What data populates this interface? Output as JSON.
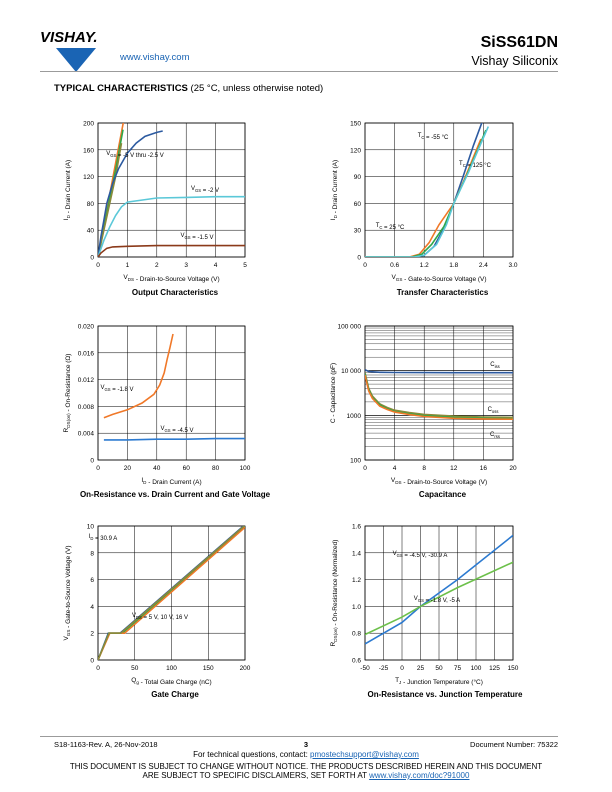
{
  "header": {
    "brand": "VISHAY.",
    "url": "www.vishay.com",
    "part_number": "SiSS61DN",
    "company": "Vishay Siliconix"
  },
  "section": {
    "title": "TYPICAL CHARACTERISTICS",
    "subtitle": "(25 °C, unless otherwise noted)"
  },
  "chart_data": [
    {
      "id": "output",
      "type": "line",
      "title": "Output Characteristics",
      "xlabel": "V_DS - Drain-to-Source Voltage (V)",
      "ylabel": "I_D - Drain Current (A)",
      "xlim": [
        0,
        5
      ],
      "ylim": [
        0,
        200
      ],
      "xticks": [
        "0",
        "1",
        "2",
        "3",
        "4",
        "5"
      ],
      "yticks": [
        "0",
        "40",
        "80",
        "120",
        "160",
        "200"
      ],
      "grid": true,
      "annotations": [
        "V_GS = -5 V thru -2.5 V",
        "V_GS = -2 V",
        "V_GS = -1.5 V"
      ],
      "series": [
        {
          "color": "#f07828",
          "x": [
            0,
            0.3,
            0.6,
            0.9
          ],
          "y": [
            0,
            70,
            140,
            210
          ]
        },
        {
          "color": "#2fa84a",
          "x": [
            0,
            0.3,
            0.6,
            0.85
          ],
          "y": [
            0,
            65,
            130,
            190
          ]
        },
        {
          "color": "#8a8a3a",
          "x": [
            0,
            0.3,
            0.6,
            0.8
          ],
          "y": [
            0,
            60,
            120,
            170
          ]
        },
        {
          "color": "#2c5aa0",
          "x": [
            0,
            0.1,
            0.2,
            0.3,
            0.5,
            0.7,
            1.0,
            1.3,
            1.6,
            2.0,
            2.2
          ],
          "y": [
            0,
            30,
            55,
            80,
            110,
            132,
            155,
            170,
            180,
            186,
            188
          ]
        },
        {
          "color": "#5bc8d8",
          "x": [
            0,
            0.2,
            0.4,
            0.6,
            0.8,
            1.0,
            2,
            3,
            4,
            5
          ],
          "y": [
            0,
            25,
            45,
            62,
            75,
            82,
            88,
            89,
            90,
            90
          ]
        },
        {
          "color": "#8b3a1a",
          "x": [
            0,
            0.1,
            0.3,
            0.5,
            1,
            2,
            3,
            4,
            5
          ],
          "y": [
            0,
            6,
            13,
            15,
            16,
            17,
            17,
            17,
            17
          ]
        }
      ]
    },
    {
      "id": "transfer",
      "type": "line",
      "title": "Transfer Characteristics",
      "xlabel": "V_GS - Gate-to-Source Voltage (V)",
      "ylabel": "I_D - Drain Current (A)",
      "xlim": [
        0,
        3.0
      ],
      "ylim": [
        0,
        150
      ],
      "xticks": [
        "0",
        "0.6",
        "1.2",
        "1.8",
        "2.4",
        "3.0"
      ],
      "yticks": [
        "0",
        "30",
        "60",
        "90",
        "120",
        "150"
      ],
      "grid": true,
      "annotations": [
        "T_C = -55 °C",
        "T_C = 125 °C",
        "T_C = 25 °C"
      ],
      "series": [
        {
          "color": "#2c5aa0",
          "x": [
            0,
            1.0,
            1.2,
            1.4,
            1.6,
            1.8,
            2.0,
            2.2,
            2.4
          ],
          "y": [
            0,
            0,
            2,
            12,
            32,
            60,
            92,
            125,
            155
          ]
        },
        {
          "color": "#f07828",
          "x": [
            0,
            0.9,
            1.1,
            1.3,
            1.5,
            1.8,
            2.0,
            2.2,
            2.35
          ],
          "y": [
            0,
            0,
            3,
            16,
            36,
            60,
            85,
            112,
            132
          ]
        },
        {
          "color": "#2fa84a",
          "x": [
            0,
            0.95,
            1.15,
            1.35,
            1.6,
            1.8,
            2.05,
            2.3,
            2.45
          ],
          "y": [
            0,
            0,
            3,
            14,
            34,
            60,
            90,
            122,
            142
          ]
        },
        {
          "color": "#5bc8d8",
          "x": [
            0,
            1.0,
            1.2,
            1.45,
            1.65,
            1.8,
            2.1,
            2.35,
            2.5
          ],
          "y": [
            0,
            0,
            2,
            14,
            36,
            60,
            95,
            127,
            146
          ]
        }
      ]
    },
    {
      "id": "onres",
      "type": "line",
      "title": "On-Resistance vs. Drain Current and Gate Voltage",
      "xlabel": "I_D - Drain Current (A)",
      "ylabel": "R_DS(on) - On-Resistance (Ω)",
      "xlim": [
        0,
        100
      ],
      "ylim": [
        0,
        0.02
      ],
      "xticks": [
        "0",
        "20",
        "40",
        "60",
        "80",
        "100"
      ],
      "yticks": [
        "0",
        "0.004",
        "0.008",
        "0.012",
        "0.016",
        "0.020"
      ],
      "grid": true,
      "annotations": [
        "V_GS = -1.8 V",
        "V_GS = -4.5 V"
      ],
      "series": [
        {
          "color": "#f07828",
          "x": [
            4,
            10,
            20,
            30,
            38,
            42,
            45,
            47,
            49,
            51
          ],
          "y": [
            0.0063,
            0.0068,
            0.0075,
            0.0085,
            0.0098,
            0.0112,
            0.013,
            0.015,
            0.0168,
            0.0188
          ]
        },
        {
          "color": "#2c7ad0",
          "x": [
            4,
            20,
            40,
            60,
            80,
            100
          ],
          "y": [
            0.003,
            0.003,
            0.0031,
            0.0031,
            0.0032,
            0.0032
          ]
        }
      ]
    },
    {
      "id": "capacitance",
      "type": "line",
      "title": "Capacitance",
      "xlabel": "V_DS - Drain-to-Source Voltage (V)",
      "ylabel": "C - Capacitance (pF)",
      "xlim": [
        0,
        20
      ],
      "ylim": [
        100,
        100000
      ],
      "yscale": "log",
      "xticks": [
        "0",
        "4",
        "8",
        "12",
        "16",
        "20"
      ],
      "yticks": [
        "100",
        "1000",
        "10 000",
        "100 000"
      ],
      "grid": true,
      "annotations": [
        "C_iss",
        "C_oss",
        "C_rss"
      ],
      "series": [
        {
          "color": "#2c5aa0",
          "x": [
            0,
            0.5,
            2,
            4,
            8,
            12,
            16,
            20
          ],
          "y": [
            10500,
            9600,
            9200,
            9100,
            9050,
            9000,
            9000,
            9000
          ]
        },
        {
          "color": "#8a8a3a",
          "x": [
            0,
            0.5,
            1,
            2,
            3,
            4,
            6,
            8,
            12,
            16,
            20
          ],
          "y": [
            9000,
            4000,
            2700,
            1800,
            1500,
            1300,
            1150,
            1050,
            960,
            920,
            900
          ]
        },
        {
          "color": "#2fa84a",
          "x": [
            0,
            0.5,
            1,
            2,
            3,
            4,
            6,
            8,
            12,
            16,
            20
          ],
          "y": [
            8500,
            3800,
            2500,
            1700,
            1400,
            1220,
            1080,
            980,
            900,
            860,
            840
          ]
        },
        {
          "color": "#f07828",
          "x": [
            0,
            0.5,
            1,
            2,
            3,
            4,
            6,
            8,
            12,
            16,
            20
          ],
          "y": [
            8000,
            3500,
            2400,
            1600,
            1350,
            1180,
            1040,
            940,
            860,
            830,
            820
          ]
        }
      ]
    },
    {
      "id": "gate",
      "type": "line",
      "title": "Gate Charge",
      "xlabel": "Q_g - Total Gate Charge (nC)",
      "ylabel": "V_GS - Gate-to-Source Voltage (V)",
      "xlim": [
        0,
        200
      ],
      "ylim": [
        0,
        10
      ],
      "xticks": [
        "0",
        "50",
        "100",
        "150",
        "200"
      ],
      "yticks": [
        "0",
        "2",
        "4",
        "6",
        "8",
        "10"
      ],
      "grid": true,
      "annotations": [
        "I_D = 30.9 A",
        "V_DS = 5 V, 10 V, 16 V"
      ],
      "series": [
        {
          "color": "#2c5aa0",
          "x": [
            0,
            14,
            30,
            200
          ],
          "y": [
            0,
            2,
            2,
            10.1
          ]
        },
        {
          "color": "#2fa84a",
          "x": [
            0,
            15,
            33,
            200
          ],
          "y": [
            0,
            2,
            2,
            10
          ]
        },
        {
          "color": "#f07828",
          "x": [
            0,
            16,
            36,
            200
          ],
          "y": [
            0,
            2,
            2,
            9.9
          ]
        },
        {
          "color": "#8a8a3a",
          "x": [
            0,
            15,
            31,
            200
          ],
          "y": [
            0,
            2,
            2,
            10.05
          ]
        }
      ]
    },
    {
      "id": "temp",
      "type": "line",
      "title": "On-Resistance vs. Junction Temperature",
      "xlabel": "T_J - Junction Temperature (°C)",
      "ylabel": "R_DS(on) - On-Resistance (Normalized)",
      "xlim": [
        -50,
        150
      ],
      "ylim": [
        0.6,
        1.6
      ],
      "xticks": [
        "-50",
        "-25",
        "0",
        "25",
        "50",
        "75",
        "100",
        "125",
        "150"
      ],
      "yticks": [
        "0.6",
        "0.8",
        "1.0",
        "1.2",
        "1.4",
        "1.6"
      ],
      "grid": true,
      "annotations": [
        "V_GS = -4.5 V, -30.9 A",
        "V_GS = -1.8 V, -5 A"
      ],
      "series": [
        {
          "color": "#2c7ad0",
          "x": [
            -50,
            0,
            25,
            75,
            150
          ],
          "y": [
            0.72,
            0.88,
            1.0,
            1.2,
            1.53
          ]
        },
        {
          "color": "#6cc04a",
          "x": [
            -50,
            0,
            25,
            75,
            150
          ],
          "y": [
            0.79,
            0.92,
            1.0,
            1.14,
            1.33
          ]
        }
      ]
    }
  ],
  "footer": {
    "revision": "S18-1163-Rev. A, 26-Nov-2018",
    "page": "3",
    "document_number": "Document Number: 75322",
    "questions_prefix": "For technical questions, contact: ",
    "questions_email": "pmostechsupport@vishay.com",
    "disclaimer_1": "THIS DOCUMENT IS SUBJECT TO CHANGE WITHOUT NOTICE. THE PRODUCTS DESCRIBED HEREIN AND THIS DOCUMENT",
    "disclaimer_2_prefix": "ARE SUBJECT TO SPECIFIC DISCLAIMERS, SET FORTH AT ",
    "disclaimer_link": "www.vishay.com/doc?91000"
  }
}
